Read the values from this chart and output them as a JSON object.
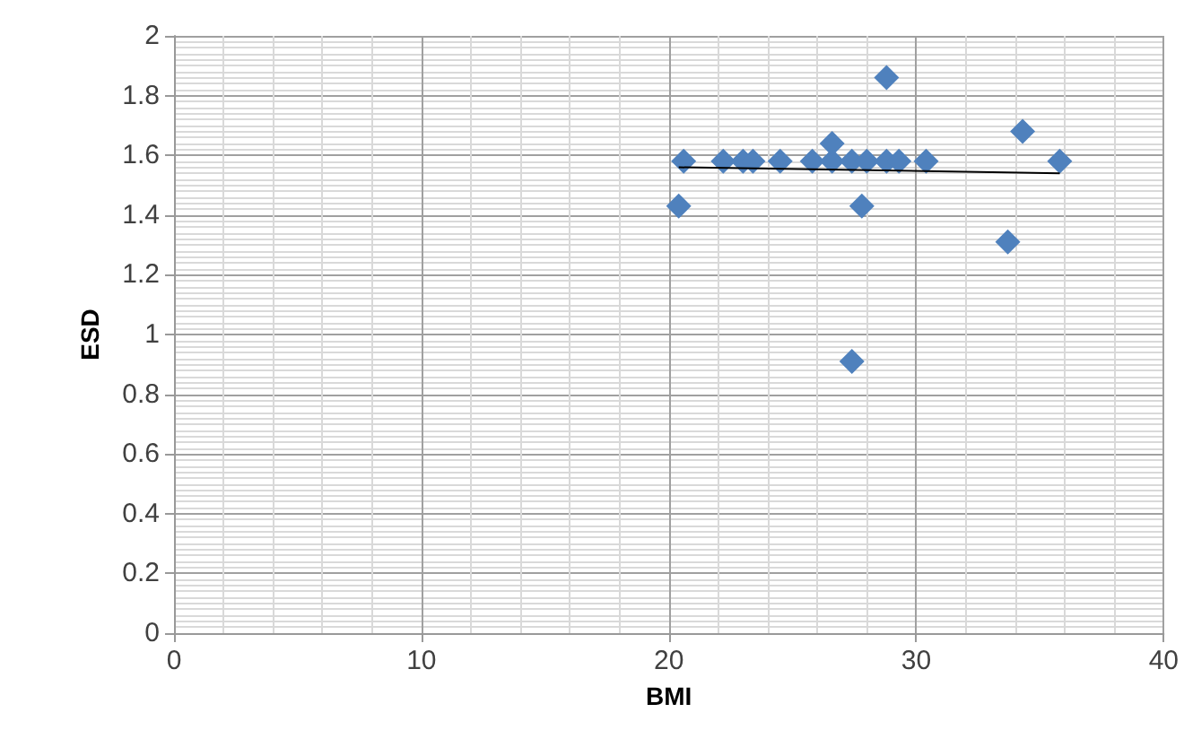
{
  "chart_data": {
    "type": "scatter",
    "xlabel": "BMI",
    "ylabel": "ESD",
    "xlim": [
      0,
      40
    ],
    "xticks": [
      0,
      10,
      20,
      30,
      40
    ],
    "ylim": [
      0,
      2
    ],
    "yticks": [
      0,
      0.2,
      0.4,
      0.6,
      0.8,
      1,
      1.2,
      1.4,
      1.6,
      1.8,
      2
    ],
    "grid": true,
    "marker": "diamond",
    "series": [
      {
        "color": "#4f81bd",
        "x": [
          20.4,
          20.6,
          22.2,
          23.0,
          23.4,
          24.5,
          25.8,
          26.6,
          27.4,
          28.0,
          28.8,
          29.3,
          30.4,
          26.6,
          28.8,
          34.3,
          35.8,
          27.8,
          33.7,
          27.4
        ],
        "values": [
          1.43,
          1.58,
          1.58,
          1.58,
          1.58,
          1.58,
          1.58,
          1.58,
          1.58,
          1.58,
          1.58,
          1.58,
          1.58,
          1.64,
          1.86,
          1.68,
          1.58,
          1.43,
          1.31,
          0.91
        ]
      },
      {
        "type": "line",
        "color": "#000000",
        "marker": "none",
        "x": [
          20.4,
          35.8
        ],
        "values": [
          1.56,
          1.54
        ]
      }
    ]
  }
}
